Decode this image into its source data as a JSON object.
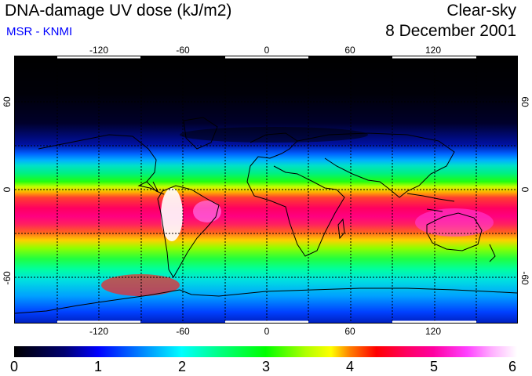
{
  "header": {
    "title": "DNA-damage UV dose (kJ/m2)",
    "subtitle": "MSR - KNMI",
    "sky_condition": "Clear-sky",
    "date": "8 December 2001"
  },
  "map": {
    "longitude_ticks": [
      "-120",
      "-60",
      "0",
      "60",
      "120"
    ],
    "latitude_ticks": [
      "60",
      "0",
      "-60"
    ],
    "subtitle_color": "#0000ff"
  },
  "colorbar": {
    "min": 0,
    "max": 6,
    "labels": [
      "0",
      "1",
      "2",
      "3",
      "4",
      "5",
      "6"
    ]
  }
}
